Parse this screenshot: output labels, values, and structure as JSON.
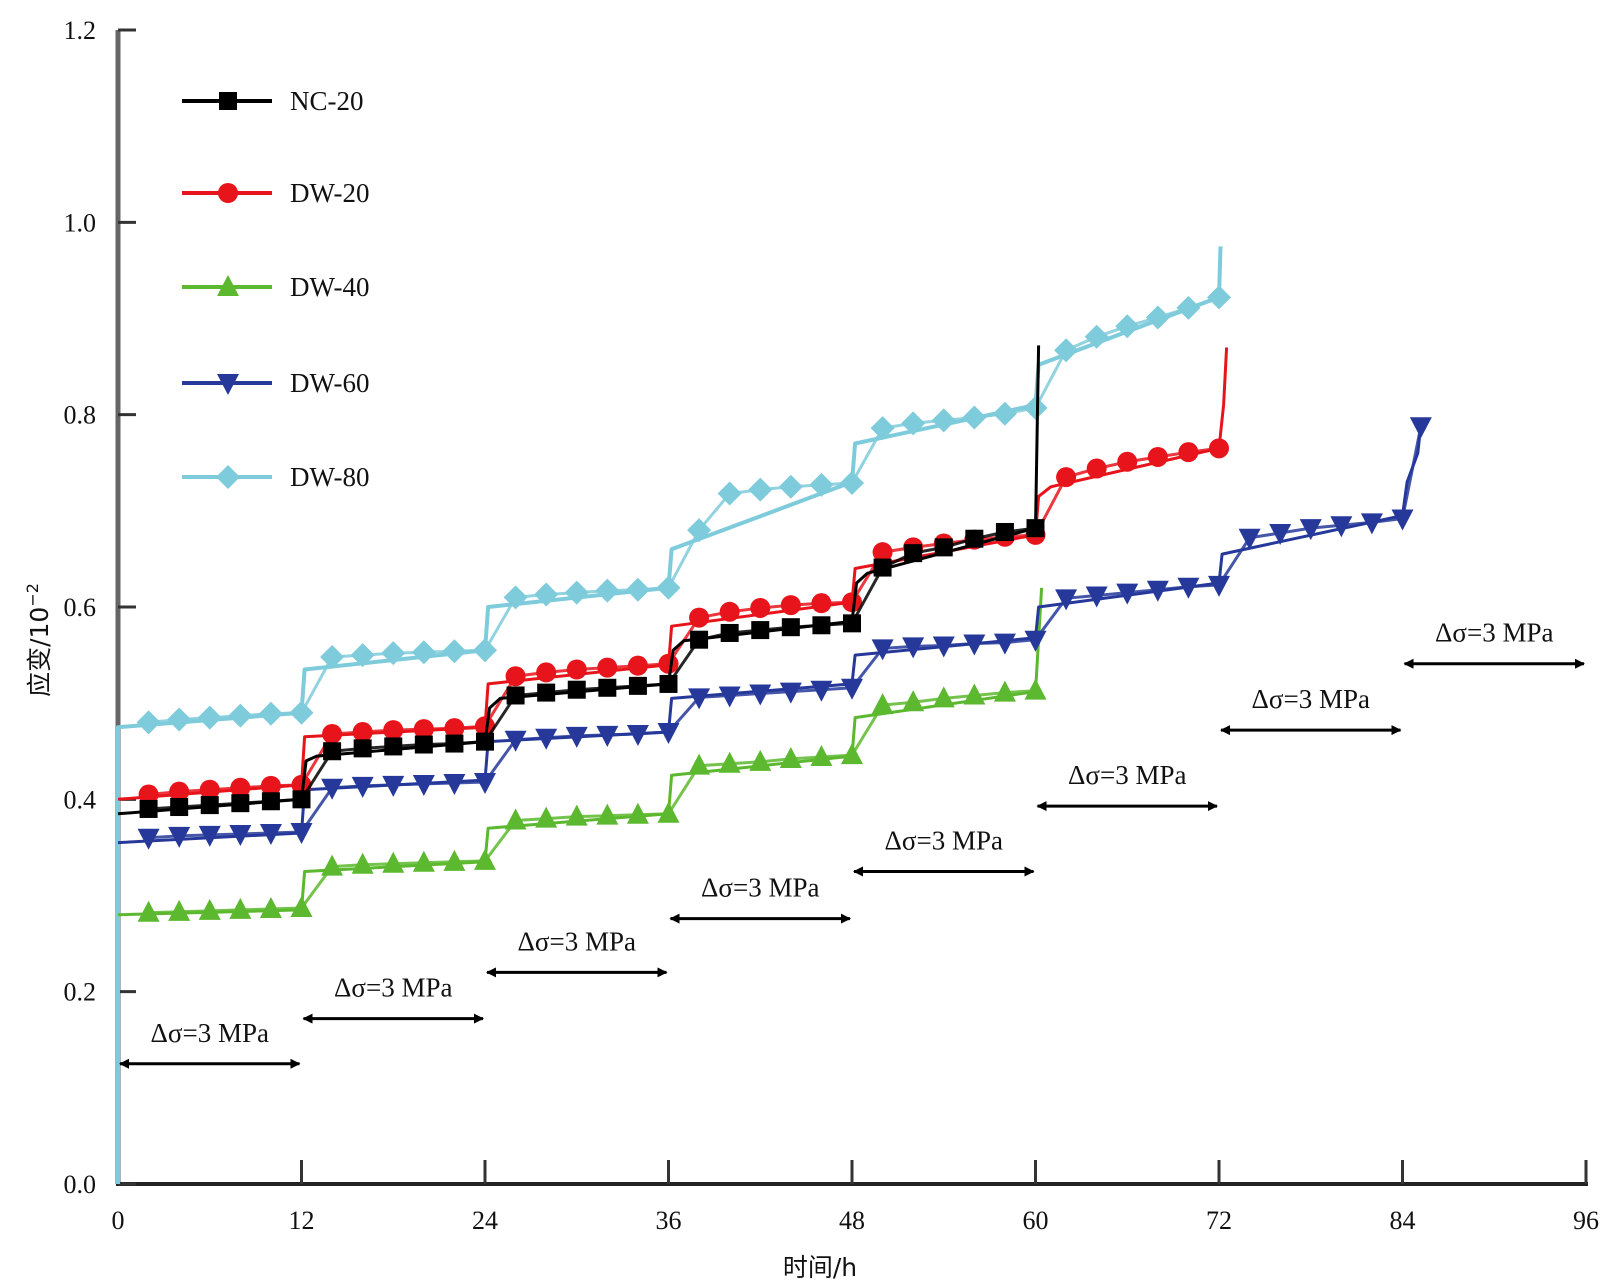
{
  "chart_data": {
    "type": "line",
    "title": "",
    "xlabel": "时间/h",
    "ylabel": "应变/10",
    "ylabel_superscript": "−2",
    "xlim": [
      0,
      96
    ],
    "ylim": [
      0.0,
      1.2
    ],
    "xticks": [
      0,
      12,
      24,
      36,
      48,
      60,
      72,
      84,
      96
    ],
    "xtick_labels": [
      "0",
      "12",
      "24",
      "36",
      "48",
      "60",
      "72",
      "84",
      "96"
    ],
    "yticks": [
      0.0,
      0.2,
      0.4,
      0.6,
      0.8,
      1.0,
      1.2
    ],
    "ytick_labels": [
      "0.0",
      "0.2",
      "0.4",
      "0.6",
      "0.8",
      "1.0",
      "1.2"
    ],
    "grid": false,
    "legend_position": "top-left",
    "series": [
      {
        "name": "NC-20",
        "color": "#000000",
        "marker": "square",
        "line": [
          [
            0,
            0.385
          ],
          [
            12,
            0.4
          ],
          [
            12.3,
            0.44
          ],
          [
            13,
            0.445
          ],
          [
            24,
            0.46
          ],
          [
            24.3,
            0.495
          ],
          [
            25,
            0.505
          ],
          [
            36,
            0.52
          ],
          [
            36.3,
            0.555
          ],
          [
            37,
            0.565
          ],
          [
            48,
            0.585
          ],
          [
            48.3,
            0.625
          ],
          [
            49,
            0.635
          ],
          [
            60,
            0.682
          ],
          [
            60.2,
            0.872
          ]
        ],
        "markers": [
          [
            2,
            0.39
          ],
          [
            4,
            0.392
          ],
          [
            6,
            0.394
          ],
          [
            8,
            0.396
          ],
          [
            10,
            0.398
          ],
          [
            12,
            0.4
          ],
          [
            14,
            0.45
          ],
          [
            16,
            0.453
          ],
          [
            18,
            0.455
          ],
          [
            20,
            0.457
          ],
          [
            22,
            0.458
          ],
          [
            24,
            0.46
          ],
          [
            26,
            0.508
          ],
          [
            28,
            0.511
          ],
          [
            30,
            0.514
          ],
          [
            32,
            0.516
          ],
          [
            34,
            0.518
          ],
          [
            36,
            0.52
          ],
          [
            38,
            0.566
          ],
          [
            40,
            0.573
          ],
          [
            42,
            0.576
          ],
          [
            44,
            0.579
          ],
          [
            46,
            0.581
          ],
          [
            48,
            0.583
          ],
          [
            50,
            0.641
          ],
          [
            52,
            0.656
          ],
          [
            54,
            0.662
          ],
          [
            56,
            0.671
          ],
          [
            58,
            0.678
          ],
          [
            60,
            0.682
          ]
        ]
      },
      {
        "name": "DW-20",
        "color": "#e8141b",
        "marker": "circle",
        "line": [
          [
            0,
            0.4
          ],
          [
            12,
            0.415
          ],
          [
            12.2,
            0.465
          ],
          [
            24,
            0.475
          ],
          [
            24.2,
            0.52
          ],
          [
            36,
            0.54
          ],
          [
            36.2,
            0.58
          ],
          [
            48,
            0.605
          ],
          [
            48.2,
            0.64
          ],
          [
            60,
            0.675
          ],
          [
            60.2,
            0.715
          ],
          [
            61,
            0.725
          ],
          [
            72,
            0.765
          ],
          [
            72.3,
            0.81
          ],
          [
            72.5,
            0.87
          ]
        ],
        "markers": [
          [
            2,
            0.405
          ],
          [
            4,
            0.408
          ],
          [
            6,
            0.41
          ],
          [
            8,
            0.412
          ],
          [
            10,
            0.414
          ],
          [
            12,
            0.415
          ],
          [
            14,
            0.468
          ],
          [
            16,
            0.47
          ],
          [
            18,
            0.472
          ],
          [
            20,
            0.473
          ],
          [
            22,
            0.474
          ],
          [
            24,
            0.476
          ],
          [
            26,
            0.528
          ],
          [
            28,
            0.532
          ],
          [
            30,
            0.535
          ],
          [
            32,
            0.537
          ],
          [
            34,
            0.539
          ],
          [
            36,
            0.541
          ],
          [
            38,
            0.589
          ],
          [
            40,
            0.595
          ],
          [
            42,
            0.599
          ],
          [
            44,
            0.602
          ],
          [
            46,
            0.604
          ],
          [
            48,
            0.605
          ],
          [
            50,
            0.657
          ],
          [
            52,
            0.662
          ],
          [
            54,
            0.666
          ],
          [
            56,
            0.67
          ],
          [
            58,
            0.673
          ],
          [
            60,
            0.675
          ],
          [
            62,
            0.735
          ],
          [
            64,
            0.744
          ],
          [
            66,
            0.751
          ],
          [
            68,
            0.756
          ],
          [
            70,
            0.761
          ],
          [
            72,
            0.765
          ]
        ]
      },
      {
        "name": "DW-40",
        "color": "#5cb82e",
        "marker": "triangle-up",
        "line": [
          [
            0,
            0.28
          ],
          [
            12,
            0.285
          ],
          [
            12.2,
            0.325
          ],
          [
            24,
            0.335
          ],
          [
            24.2,
            0.37
          ],
          [
            36,
            0.385
          ],
          [
            36.2,
            0.425
          ],
          [
            48,
            0.445
          ],
          [
            48.2,
            0.485
          ],
          [
            60,
            0.512
          ],
          [
            60.4,
            0.62
          ]
        ],
        "markers": [
          [
            2,
            0.282
          ],
          [
            4,
            0.283
          ],
          [
            6,
            0.284
          ],
          [
            8,
            0.285
          ],
          [
            10,
            0.286
          ],
          [
            12,
            0.287
          ],
          [
            14,
            0.33
          ],
          [
            16,
            0.332
          ],
          [
            18,
            0.333
          ],
          [
            20,
            0.334
          ],
          [
            22,
            0.335
          ],
          [
            24,
            0.336
          ],
          [
            26,
            0.378
          ],
          [
            28,
            0.38
          ],
          [
            30,
            0.382
          ],
          [
            32,
            0.383
          ],
          [
            34,
            0.384
          ],
          [
            36,
            0.385
          ],
          [
            38,
            0.435
          ],
          [
            40,
            0.437
          ],
          [
            42,
            0.439
          ],
          [
            44,
            0.442
          ],
          [
            46,
            0.444
          ],
          [
            48,
            0.446
          ],
          [
            50,
            0.498
          ],
          [
            52,
            0.501
          ],
          [
            54,
            0.505
          ],
          [
            56,
            0.508
          ],
          [
            58,
            0.511
          ],
          [
            60,
            0.513
          ]
        ]
      },
      {
        "name": "DW-60",
        "color": "#26399b",
        "marker": "triangle-down",
        "line": [
          [
            0,
            0.355
          ],
          [
            12,
            0.365
          ],
          [
            12.2,
            0.41
          ],
          [
            24,
            0.42
          ],
          [
            24.2,
            0.46
          ],
          [
            36,
            0.47
          ],
          [
            36.2,
            0.505
          ],
          [
            48,
            0.52
          ],
          [
            48.2,
            0.55
          ],
          [
            60,
            0.568
          ],
          [
            60.2,
            0.6
          ],
          [
            72,
            0.625
          ],
          [
            72.2,
            0.655
          ],
          [
            84,
            0.695
          ],
          [
            84.3,
            0.73
          ],
          [
            85,
            0.76
          ],
          [
            85.2,
            0.79
          ]
        ],
        "markers": [
          [
            2,
            0.36
          ],
          [
            4,
            0.362
          ],
          [
            6,
            0.363
          ],
          [
            8,
            0.364
          ],
          [
            10,
            0.365
          ],
          [
            12,
            0.366
          ],
          [
            14,
            0.412
          ],
          [
            16,
            0.414
          ],
          [
            18,
            0.415
          ],
          [
            20,
            0.416
          ],
          [
            22,
            0.417
          ],
          [
            24,
            0.418
          ],
          [
            26,
            0.462
          ],
          [
            28,
            0.464
          ],
          [
            30,
            0.466
          ],
          [
            32,
            0.467
          ],
          [
            34,
            0.468
          ],
          [
            36,
            0.47
          ],
          [
            38,
            0.506
          ],
          [
            40,
            0.508
          ],
          [
            42,
            0.51
          ],
          [
            44,
            0.512
          ],
          [
            46,
            0.514
          ],
          [
            48,
            0.516
          ],
          [
            50,
            0.557
          ],
          [
            52,
            0.559
          ],
          [
            54,
            0.56
          ],
          [
            56,
            0.562
          ],
          [
            58,
            0.563
          ],
          [
            60,
            0.566
          ],
          [
            62,
            0.609
          ],
          [
            64,
            0.612
          ],
          [
            66,
            0.615
          ],
          [
            68,
            0.618
          ],
          [
            70,
            0.621
          ],
          [
            72,
            0.623
          ],
          [
            74,
            0.672
          ],
          [
            76,
            0.677
          ],
          [
            78,
            0.682
          ],
          [
            80,
            0.685
          ],
          [
            82,
            0.688
          ],
          [
            84,
            0.692
          ],
          [
            85.2,
            0.788
          ]
        ]
      },
      {
        "name": "DW-80",
        "color": "#7ecbdb",
        "marker": "diamond",
        "line": [
          [
            0,
            0.0
          ],
          [
            0,
            0.475
          ],
          [
            12,
            0.49
          ],
          [
            12.2,
            0.535
          ],
          [
            24,
            0.555
          ],
          [
            24.2,
            0.6
          ],
          [
            36,
            0.62
          ],
          [
            36.2,
            0.66
          ],
          [
            48,
            0.73
          ],
          [
            48.2,
            0.77
          ],
          [
            60,
            0.81
          ],
          [
            60.2,
            0.852
          ],
          [
            72,
            0.922
          ],
          [
            72.1,
            0.975
          ]
        ],
        "markers": [
          [
            2,
            0.48
          ],
          [
            4,
            0.483
          ],
          [
            6,
            0.485
          ],
          [
            8,
            0.487
          ],
          [
            10,
            0.489
          ],
          [
            12,
            0.49
          ],
          [
            14,
            0.548
          ],
          [
            16,
            0.55
          ],
          [
            18,
            0.552
          ],
          [
            20,
            0.553
          ],
          [
            22,
            0.554
          ],
          [
            24,
            0.555
          ],
          [
            26,
            0.61
          ],
          [
            28,
            0.613
          ],
          [
            30,
            0.615
          ],
          [
            32,
            0.617
          ],
          [
            34,
            0.618
          ],
          [
            36,
            0.62
          ],
          [
            38,
            0.68
          ],
          [
            40,
            0.718
          ],
          [
            42,
            0.722
          ],
          [
            44,
            0.725
          ],
          [
            46,
            0.727
          ],
          [
            48,
            0.729
          ],
          [
            50,
            0.786
          ],
          [
            52,
            0.791
          ],
          [
            54,
            0.794
          ],
          [
            56,
            0.797
          ],
          [
            58,
            0.801
          ],
          [
            60,
            0.807
          ],
          [
            62,
            0.867
          ],
          [
            64,
            0.881
          ],
          [
            66,
            0.892
          ],
          [
            68,
            0.901
          ],
          [
            70,
            0.911
          ],
          [
            72,
            0.922
          ]
        ]
      }
    ],
    "annotations": [
      {
        "label": "Δσ=3 MPa",
        "from": 0,
        "to": 12,
        "level": 0.125
      },
      {
        "label": "Δσ=3 MPa",
        "from": 12,
        "to": 24,
        "level": 0.172
      },
      {
        "label": "Δσ=3 MPa",
        "from": 24,
        "to": 36,
        "level": 0.22
      },
      {
        "label": "Δσ=3 MPa",
        "from": 36,
        "to": 48,
        "level": 0.276
      },
      {
        "label": "Δσ=3 MPa",
        "from": 48,
        "to": 60,
        "level": 0.325
      },
      {
        "label": "Δσ=3 MPa",
        "from": 60,
        "to": 72,
        "level": 0.393
      },
      {
        "label": "Δσ=3 MPa",
        "from": 72,
        "to": 84,
        "level": 0.472
      },
      {
        "label": "Δσ=3 MPa",
        "from": 84,
        "to": 96,
        "level": 0.541
      }
    ]
  }
}
